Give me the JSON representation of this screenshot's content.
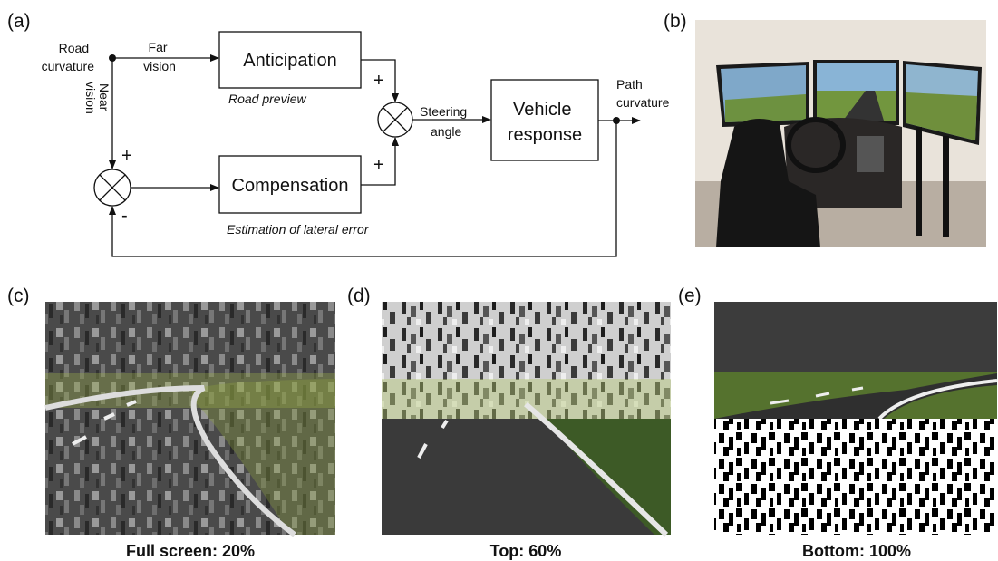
{
  "panels": {
    "a": "(a)",
    "b": "(b)",
    "c": "(c)",
    "d": "(d)",
    "e": "(e)"
  },
  "diagram": {
    "road_curvature": [
      "Road",
      "curvature"
    ],
    "far_vision": [
      "Far",
      "vision"
    ],
    "near_vision": [
      "Near",
      "vision"
    ],
    "anticipation": {
      "label": "Anticipation",
      "caption": "Road preview"
    },
    "compensation": {
      "label": "Compensation",
      "caption": "Estimation of lateral error"
    },
    "vehicle_response": [
      "Vehicle",
      "response"
    ],
    "steering_angle": [
      "Steering",
      "angle"
    ],
    "path_curvature": [
      "Path",
      "curvature"
    ],
    "signs": {
      "near": "+",
      "feedback": "-",
      "anticipation": "+",
      "compensation": "+"
    }
  },
  "captions": {
    "c": "Full screen: 20%",
    "d": "Top: 60%",
    "e": "Bottom: 100%"
  }
}
